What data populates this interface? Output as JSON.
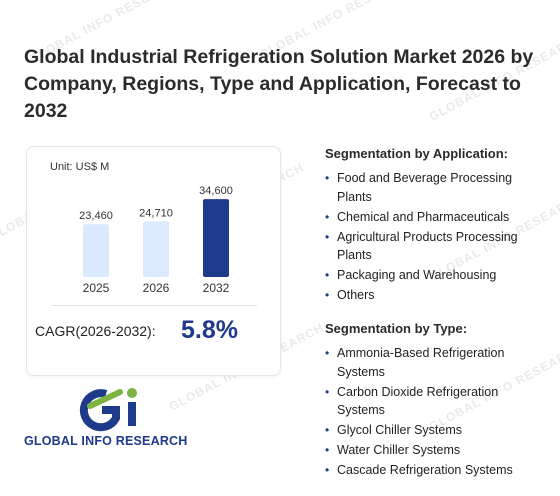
{
  "title": "Global Industrial Refrigeration Solution Market 2026 by Company, Regions, Type and Application, Forecast to 2032",
  "watermark_text": "GLOBAL INFO RESEARCH",
  "colors": {
    "accent": "#1e3a8a",
    "bar_light": "#dbeafe",
    "bar_dark": "#1e3a8a"
  },
  "chart_data": {
    "type": "bar",
    "unit_label": "Unit: US$ M",
    "categories": [
      "2025",
      "2026",
      "2032"
    ],
    "values": [
      23460,
      24710,
      34600
    ],
    "value_labels": [
      "23,460",
      "24,710",
      "34,600"
    ],
    "highlight_index": 2,
    "ylim": [
      0,
      40000
    ],
    "grid": false,
    "legend": "none"
  },
  "cagr": {
    "label": "CAGR(2026-2032):",
    "value": "5.8%"
  },
  "logo": {
    "text": "GLOBAL INFO RESEARCH",
    "icon": "gi-logo-icon"
  },
  "segmentation_application": {
    "heading": "Segmentation by Application:",
    "items": [
      "Food and Beverage Processing Plants",
      "Chemical and Pharmaceuticals",
      "Agricultural Products Processing Plants",
      "Packaging and Warehousing",
      "Others"
    ]
  },
  "segmentation_type": {
    "heading": "Segmentation by Type:",
    "items": [
      "Ammonia-Based Refrigeration Systems",
      "Carbon Dioxide Refrigeration Systems",
      "Glycol Chiller Systems",
      "Water Chiller Systems",
      "Cascade Refrigeration Systems"
    ]
  }
}
